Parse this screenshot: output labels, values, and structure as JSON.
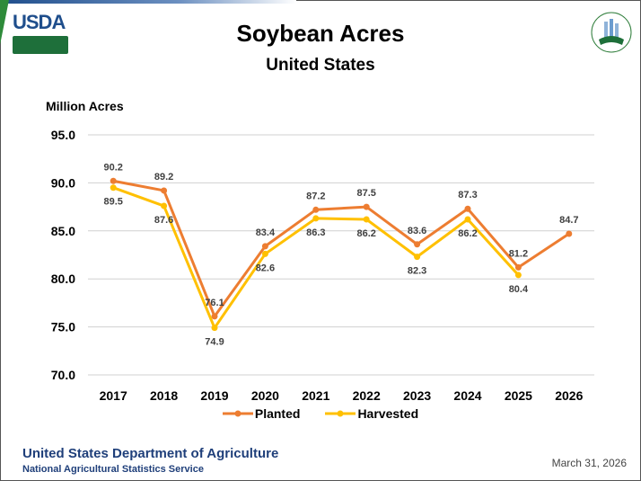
{
  "header": {
    "logo_text": "USDA",
    "seal_text": "AGRICULTURE COUNTS"
  },
  "footer": {
    "org": "United States Department of Agriculture",
    "agency": "National Agricultural Statistics Service",
    "date": "March 31, 2026"
  },
  "chart_data": {
    "type": "line",
    "title": "Soybean Acres",
    "subtitle": "United States",
    "ylabel": "Million Acres",
    "xlabel": "",
    "ylim": [
      70,
      95
    ],
    "yticks": [
      "70.0",
      "75.0",
      "80.0",
      "85.0",
      "90.0",
      "95.0"
    ],
    "grid": true,
    "legend_position": "bottom",
    "categories": [
      "2017",
      "2018",
      "2019",
      "2020",
      "2021",
      "2022",
      "2023",
      "2024",
      "2025",
      "2026"
    ],
    "series": [
      {
        "name": "Planted",
        "color": "#ED7D31",
        "values": [
          90.2,
          89.2,
          76.1,
          83.4,
          87.2,
          87.5,
          83.6,
          87.3,
          81.2,
          84.7
        ]
      },
      {
        "name": "Harvested",
        "color": "#FFC000",
        "values": [
          89.5,
          87.6,
          74.9,
          82.6,
          86.3,
          86.2,
          82.3,
          86.2,
          80.4,
          null
        ]
      }
    ]
  }
}
